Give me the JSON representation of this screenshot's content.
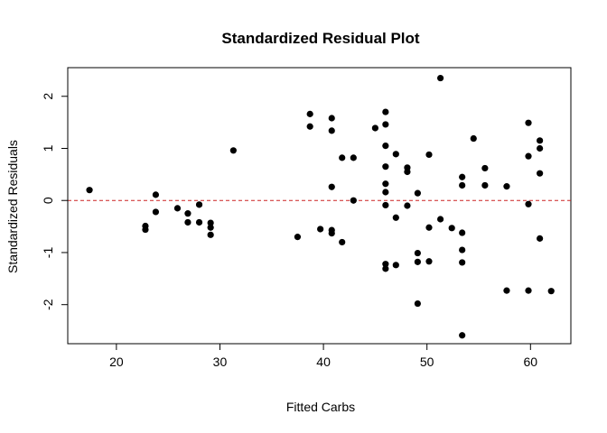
{
  "chart_data": {
    "type": "scatter",
    "title": "Standardized Residual Plot",
    "xlabel": "Fitted Carbs",
    "ylabel": "Standardized Residuals",
    "xlim": [
      15.3,
      63.9
    ],
    "ylim": [
      -2.75,
      2.55
    ],
    "x_ticks": [
      20,
      30,
      40,
      50,
      60
    ],
    "y_ticks": [
      -2,
      -1,
      0,
      1,
      2
    ],
    "x_tick_labels": [
      "20",
      "30",
      "40",
      "50",
      "60"
    ],
    "y_tick_labels": [
      "-2",
      "-1",
      "0",
      "1",
      "2"
    ],
    "reference_line": {
      "y": 0,
      "style": "dashed",
      "color": "#cc2222"
    },
    "point_color": "#000000",
    "grid": false,
    "points": [
      {
        "x": 17.4,
        "y": 0.2
      },
      {
        "x": 22.8,
        "y": -0.49
      },
      {
        "x": 22.8,
        "y": -0.56
      },
      {
        "x": 23.8,
        "y": 0.11
      },
      {
        "x": 23.8,
        "y": -0.22
      },
      {
        "x": 25.9,
        "y": -0.15
      },
      {
        "x": 26.9,
        "y": -0.25
      },
      {
        "x": 26.9,
        "y": -0.42
      },
      {
        "x": 28.0,
        "y": -0.08
      },
      {
        "x": 28.0,
        "y": -0.42
      },
      {
        "x": 29.1,
        "y": -0.43
      },
      {
        "x": 29.1,
        "y": -0.52
      },
      {
        "x": 29.1,
        "y": -0.66
      },
      {
        "x": 31.3,
        "y": 0.96
      },
      {
        "x": 37.5,
        "y": -0.7
      },
      {
        "x": 38.7,
        "y": 1.66
      },
      {
        "x": 38.7,
        "y": 1.42
      },
      {
        "x": 39.7,
        "y": -0.55
      },
      {
        "x": 40.8,
        "y": 1.58
      },
      {
        "x": 40.8,
        "y": 1.34
      },
      {
        "x": 40.8,
        "y": 0.26
      },
      {
        "x": 40.8,
        "y": -0.57
      },
      {
        "x": 40.8,
        "y": -0.63
      },
      {
        "x": 41.8,
        "y": 0.82
      },
      {
        "x": 41.8,
        "y": -0.8
      },
      {
        "x": 42.9,
        "y": 0.82
      },
      {
        "x": 42.9,
        "y": 0.0
      },
      {
        "x": 45.0,
        "y": 1.39
      },
      {
        "x": 46.0,
        "y": 1.7
      },
      {
        "x": 46.0,
        "y": 1.46
      },
      {
        "x": 46.0,
        "y": 1.05
      },
      {
        "x": 46.0,
        "y": 0.65
      },
      {
        "x": 46.0,
        "y": 0.32
      },
      {
        "x": 46.0,
        "y": 0.16
      },
      {
        "x": 46.0,
        "y": -0.09
      },
      {
        "x": 46.0,
        "y": -1.22
      },
      {
        "x": 46.0,
        "y": -1.31
      },
      {
        "x": 47.0,
        "y": 0.89
      },
      {
        "x": 47.0,
        "y": -0.33
      },
      {
        "x": 47.0,
        "y": -1.24
      },
      {
        "x": 48.1,
        "y": 0.63
      },
      {
        "x": 48.1,
        "y": 0.55
      },
      {
        "x": 48.1,
        "y": -0.1
      },
      {
        "x": 49.1,
        "y": 0.14
      },
      {
        "x": 49.1,
        "y": -1.01
      },
      {
        "x": 49.1,
        "y": -1.18
      },
      {
        "x": 49.1,
        "y": -1.98
      },
      {
        "x": 50.2,
        "y": 0.88
      },
      {
        "x": 50.2,
        "y": -0.52
      },
      {
        "x": 50.2,
        "y": -1.17
      },
      {
        "x": 51.3,
        "y": 2.35
      },
      {
        "x": 51.3,
        "y": -0.36
      },
      {
        "x": 52.4,
        "y": -0.53
      },
      {
        "x": 53.4,
        "y": 0.45
      },
      {
        "x": 53.4,
        "y": 0.29
      },
      {
        "x": 53.4,
        "y": -0.62
      },
      {
        "x": 53.4,
        "y": -0.95
      },
      {
        "x": 53.4,
        "y": -1.19
      },
      {
        "x": 53.4,
        "y": -2.59
      },
      {
        "x": 54.5,
        "y": 1.19
      },
      {
        "x": 55.6,
        "y": 0.62
      },
      {
        "x": 55.6,
        "y": 0.29
      },
      {
        "x": 57.7,
        "y": 0.27
      },
      {
        "x": 57.7,
        "y": -1.73
      },
      {
        "x": 59.8,
        "y": 1.49
      },
      {
        "x": 59.8,
        "y": 0.85
      },
      {
        "x": 59.8,
        "y": -0.07
      },
      {
        "x": 59.8,
        "y": -1.73
      },
      {
        "x": 60.9,
        "y": 1.15
      },
      {
        "x": 60.9,
        "y": 1.0
      },
      {
        "x": 60.9,
        "y": 0.52
      },
      {
        "x": 60.9,
        "y": -0.73
      },
      {
        "x": 62.0,
        "y": -1.74
      }
    ]
  }
}
